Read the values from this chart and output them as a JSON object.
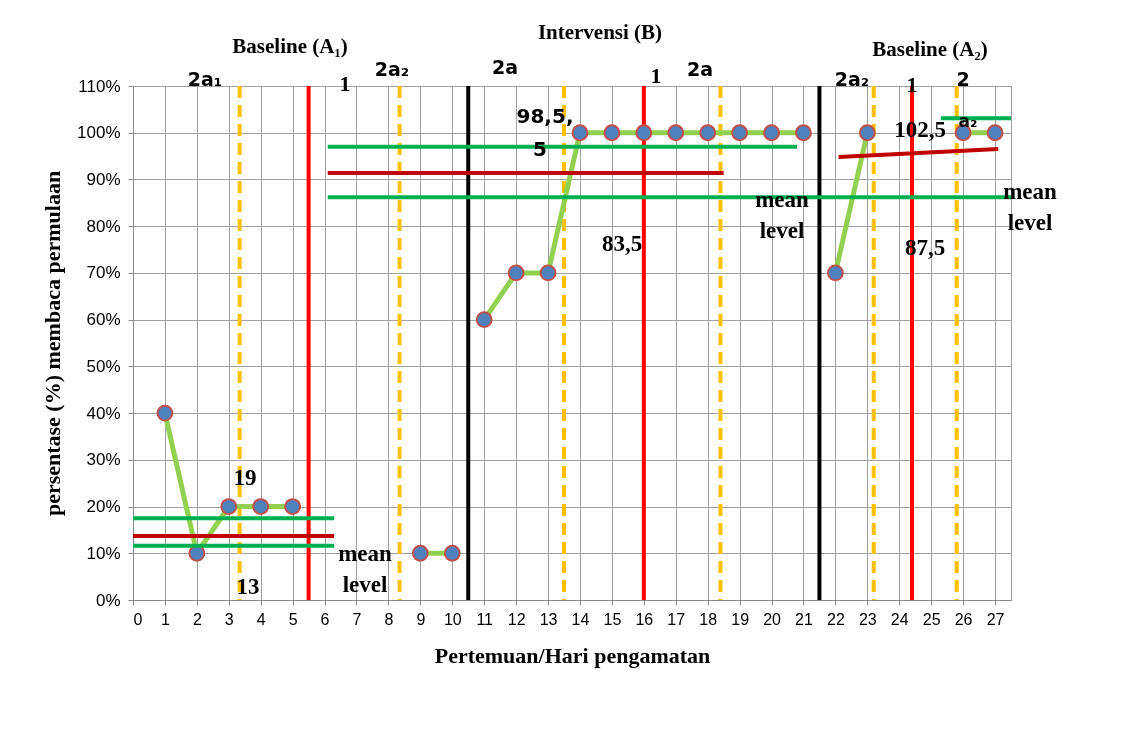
{
  "chart_data": {
    "type": "line",
    "xlabel": "Pertemuan/Hari pengamatan",
    "ylabel": "persentase (%) membaca permulaan",
    "xlim": [
      0,
      27.5
    ],
    "xticks": [
      0,
      1,
      2,
      3,
      4,
      5,
      6,
      7,
      8,
      9,
      10,
      11,
      12,
      13,
      14,
      15,
      16,
      17,
      18,
      19,
      20,
      21,
      22,
      23,
      24,
      25,
      26,
      27
    ],
    "ylim": [
      0,
      110
    ],
    "yticks": [
      {
        "value": 0,
        "label": "0%"
      },
      {
        "value": 10,
        "label": "10%"
      },
      {
        "value": 20,
        "label": "20%"
      },
      {
        "value": 30,
        "label": "30%"
      },
      {
        "value": 40,
        "label": "40%"
      },
      {
        "value": 50,
        "label": "50%"
      },
      {
        "value": 60,
        "label": "60%"
      },
      {
        "value": 70,
        "label": "70%"
      },
      {
        "value": 80,
        "label": "80%"
      },
      {
        "value": 90,
        "label": "90%"
      },
      {
        "value": 100,
        "label": "100%"
      },
      {
        "value": 110,
        "label": "110%"
      }
    ],
    "grid": true,
    "marker": "circle",
    "line_style": "solid",
    "series": [
      {
        "color": "#92d050",
        "x": [
          1,
          2,
          3,
          4,
          5,
          6,
          7,
          8,
          9,
          10
        ],
        "values": [
          40,
          10,
          20,
          20,
          20,
          null,
          null,
          null,
          10,
          10
        ]
      },
      {
        "color": "#92d050",
        "x": [
          11,
          12,
          13,
          14,
          15,
          16,
          17,
          18,
          19,
          20,
          21
        ],
        "values": [
          60,
          70,
          70,
          100,
          100,
          100,
          100,
          100,
          100,
          100,
          100
        ]
      },
      {
        "color": "#92d050",
        "x": [
          22,
          23,
          24,
          25,
          26,
          27
        ],
        "values": [
          70,
          100,
          null,
          null,
          100,
          100
        ]
      },
      {
        "type": "line",
        "marker": "none",
        "color": "#00b050",
        "x": [
          0,
          6.3
        ],
        "values": [
          17.5,
          17.5
        ]
      },
      {
        "type": "line",
        "marker": "none",
        "color": "#c00000",
        "x": [
          0,
          6.3
        ],
        "values": [
          13.7,
          13.7
        ]
      },
      {
        "type": "line",
        "marker": "none",
        "color": "#00b050",
        "x": [
          0,
          6.3
        ],
        "values": [
          11.6,
          11.6
        ]
      },
      {
        "type": "line",
        "marker": "none",
        "color": "#00b050",
        "x": [
          6.1,
          20.8
        ],
        "values": [
          97,
          97
        ]
      },
      {
        "type": "line",
        "marker": "none",
        "color": "#c00000",
        "x": [
          6.1,
          18.5
        ],
        "values": [
          91.4,
          91.4
        ]
      },
      {
        "type": "line",
        "marker": "none",
        "color": "#00b050",
        "x": [
          6.1,
          27.5
        ],
        "values": [
          86.2,
          86.2
        ]
      },
      {
        "type": "line",
        "marker": "none",
        "color": "#c00000",
        "x": [
          22.1,
          27.1
        ],
        "values": [
          94.8,
          96.5
        ]
      },
      {
        "type": "line",
        "marker": "none",
        "color": "#00b050",
        "x": [
          25.3,
          27.5
        ],
        "values": [
          103.1,
          103.1
        ]
      }
    ],
    "ref_lines": [
      {
        "axis": "x",
        "value": 3.34,
        "color": "#ffc000",
        "line_style": "dashed"
      },
      {
        "axis": "x",
        "value": 5.5,
        "color": "#ff0000",
        "line_style": "solid"
      },
      {
        "axis": "x",
        "value": 8.35,
        "color": "#ffc000",
        "line_style": "dashed"
      },
      {
        "axis": "x",
        "value": 10.5,
        "color": "#000000",
        "line_style": "solid"
      },
      {
        "axis": "x",
        "value": 13.5,
        "color": "#ffc000",
        "line_style": "dashed"
      },
      {
        "axis": "x",
        "value": 16,
        "color": "#ff0000",
        "line_style": "solid"
      },
      {
        "axis": "x",
        "value": 18.4,
        "color": "#ffc000",
        "line_style": "dashed"
      },
      {
        "axis": "x",
        "value": 21.5,
        "color": "#000000",
        "line_style": "solid"
      },
      {
        "axis": "x",
        "value": 23.2,
        "color": "#ffc000",
        "line_style": "dashed"
      },
      {
        "axis": "x",
        "value": 24.4,
        "color": "#ff0000",
        "line_style": "solid"
      },
      {
        "axis": "x",
        "value": 25.8,
        "color": "#ffc000",
        "line_style": "dashed"
      }
    ],
    "annotations": [
      "Baseline (A₁)",
      "Intervensi (B)",
      "Baseline (A₂)",
      "2a₁",
      "1",
      "2a₂",
      "2a",
      "1",
      "2a",
      "2a₂",
      "1",
      "2",
      "a₂",
      "19",
      "13",
      "mean level",
      "98,5,",
      "5",
      "83,5",
      "mean level",
      "102,5",
      "87,5",
      "mean level"
    ]
  }
}
